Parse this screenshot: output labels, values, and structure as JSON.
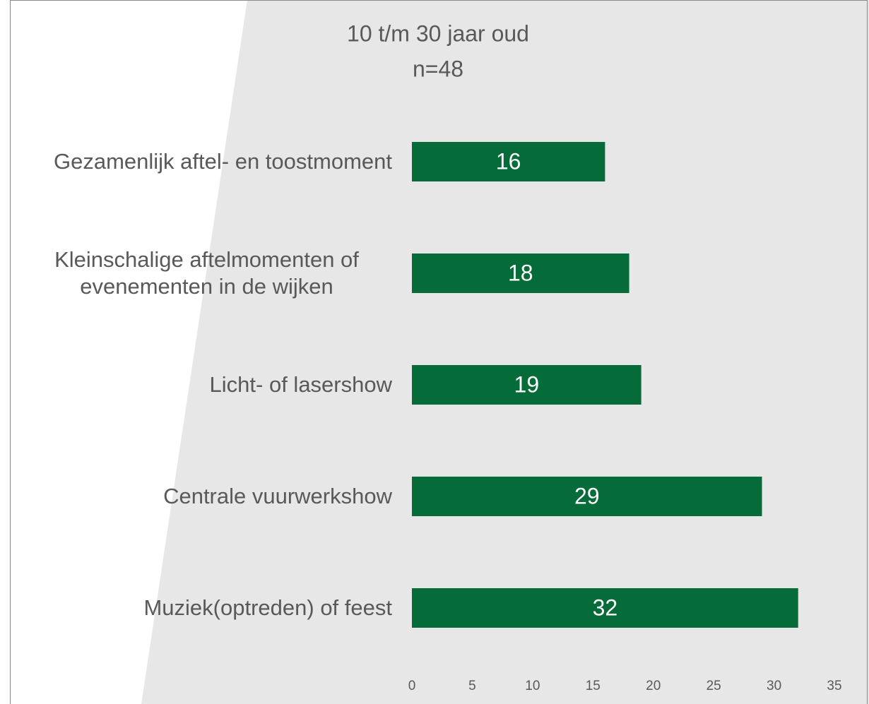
{
  "chart_data": {
    "type": "bar",
    "orientation": "horizontal",
    "title": "10 t/m 30 jaar oud",
    "subtitle": "n=48",
    "categories": [
      "Gezamenlijk aftel- en toostmoment",
      "Kleinschalige aftelmomenten of evenementen in de wijken",
      "Licht- of lasershow",
      "Centrale vuurwerkshow",
      "Muziek(optreden) of feest"
    ],
    "values": [
      16,
      18,
      19,
      29,
      32
    ],
    "color": "#046b39",
    "xlim": [
      0,
      35
    ],
    "xticks": [
      0,
      5,
      10,
      15,
      20,
      25,
      30,
      35
    ],
    "grid": false
  }
}
